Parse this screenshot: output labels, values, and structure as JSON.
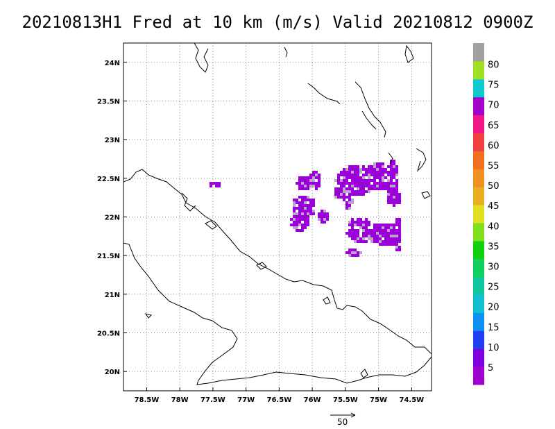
{
  "title": "20210813H1 Fred at 10 km (m/s) Valid 20210812 0900Z",
  "map": {
    "lon_range": [
      -78.85,
      -74.2
    ],
    "lat_range": [
      19.75,
      24.25
    ],
    "lon_ticks": [
      "78.5W",
      "78W",
      "77.5W",
      "77W",
      "76.5W",
      "76W",
      "75.5W",
      "75W",
      "74.5W"
    ],
    "lat_ticks": [
      "24N",
      "23.5N",
      "23N",
      "22.5N",
      "22N",
      "21.5N",
      "21N",
      "20.5N",
      "20N"
    ],
    "grid": "dotted",
    "coastline_color": "#000000",
    "wind_color_main": "#9a00d8",
    "wind_color_secondary": "#c0a0d0",
    "wind_speed_range_ms": [
      0,
      5
    ]
  },
  "colorbar": {
    "labels": [
      "5",
      "10",
      "15",
      "20",
      "25",
      "30",
      "35",
      "40",
      "45",
      "50",
      "55",
      "60",
      "65",
      "70",
      "75",
      "80"
    ],
    "colors": [
      "#a000d0",
      "#8000e0",
      "#2040f0",
      "#1090f0",
      "#10c0d0",
      "#10c8a0",
      "#10d060",
      "#10d010",
      "#80e020",
      "#e0e020",
      "#e8b020",
      "#f09020",
      "#f07020",
      "#f04040",
      "#f01888",
      "#a000c8",
      "#10c8d0",
      "#a0e020",
      "#a0a0a0"
    ]
  },
  "reference_vector": {
    "label": "50"
  }
}
